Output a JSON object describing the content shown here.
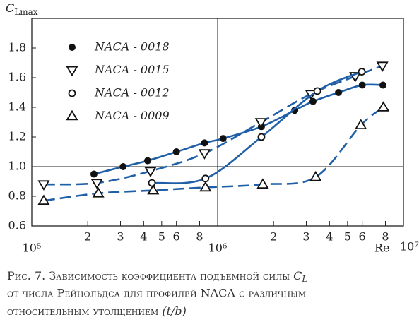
{
  "chart_data": {
    "type": "line",
    "y_label": "C",
    "y_label_sub": "Lmax",
    "x_label": "Re",
    "log_x": true,
    "xlim": [
      100000,
      10000000
    ],
    "ylim": [
      0.6,
      2.0
    ],
    "xticks": [
      {
        "value": 100000,
        "label": "10⁵"
      },
      {
        "value": 200000,
        "label": "2"
      },
      {
        "value": 300000,
        "label": "3"
      },
      {
        "value": 400000,
        "label": "4"
      },
      {
        "value": 500000,
        "label": "5"
      },
      {
        "value": 600000,
        "label": "6"
      },
      {
        "value": 800000,
        "label": "8"
      },
      {
        "value": 1000000,
        "label": "10⁶"
      },
      {
        "value": 2000000,
        "label": "2"
      },
      {
        "value": 3000000,
        "label": "3"
      },
      {
        "value": 4000000,
        "label": "4"
      },
      {
        "value": 5000000,
        "label": "5"
      },
      {
        "value": 6000000,
        "label": "6"
      },
      {
        "value": 8000000,
        "label": "8"
      },
      {
        "value": 10000000,
        "label": "10⁷"
      }
    ],
    "yticks": [
      0.6,
      0.8,
      {
        "value": 1.0,
        "label": "1.0"
      },
      1.2,
      1.4,
      1.6,
      1.8
    ],
    "reference_lines": {
      "x": 1000000,
      "y": 1.0
    },
    "line_color": "#1f5fa8",
    "marker_color": "#111111",
    "legend": "upper left",
    "series": [
      {
        "name": "NACA - 0018",
        "marker": "circle-filled",
        "line_style": "solid",
        "x": [
          216000,
          310000,
          420000,
          600000,
          850000,
          1070000,
          1720000,
          2600000,
          3260000,
          4470000,
          6000000,
          7760000
        ],
        "values": [
          0.95,
          1.0,
          1.04,
          1.1,
          1.16,
          1.19,
          1.27,
          1.38,
          1.44,
          1.5,
          1.55,
          1.55
        ]
      },
      {
        "name": "NACA - 0015",
        "marker": "triangle-down",
        "line_style": "dashed",
        "x": [
          116000,
          224000,
          435000,
          850000,
          1710000,
          3180000,
          5500000,
          7700000
        ],
        "values": [
          0.88,
          0.89,
          0.97,
          1.09,
          1.3,
          1.49,
          1.61,
          1.68
        ]
      },
      {
        "name": "NACA - 0012",
        "marker": "circle-open",
        "line_style": "solid",
        "x": [
          443000,
          860000,
          1720000,
          3440000,
          5970000
        ],
        "values": [
          0.89,
          0.92,
          1.2,
          1.51,
          1.64
        ]
      },
      {
        "name": "NACA - 0009",
        "marker": "triangle-up",
        "line_style": "dashed",
        "x": [
          116000,
          228000,
          450000,
          860000,
          1750000,
          3370000,
          5900000,
          7800000
        ],
        "values": [
          0.77,
          0.82,
          0.84,
          0.86,
          0.88,
          0.93,
          1.28,
          1.4
        ]
      }
    ],
    "caption": [
      "Рис. 7. Зависимость коэффициента подъемной силы",
      "C",
      "L",
      "от числа Рейнольдса для профилей NACA с различным",
      "относительным утолщением",
      "(t/b)"
    ]
  }
}
